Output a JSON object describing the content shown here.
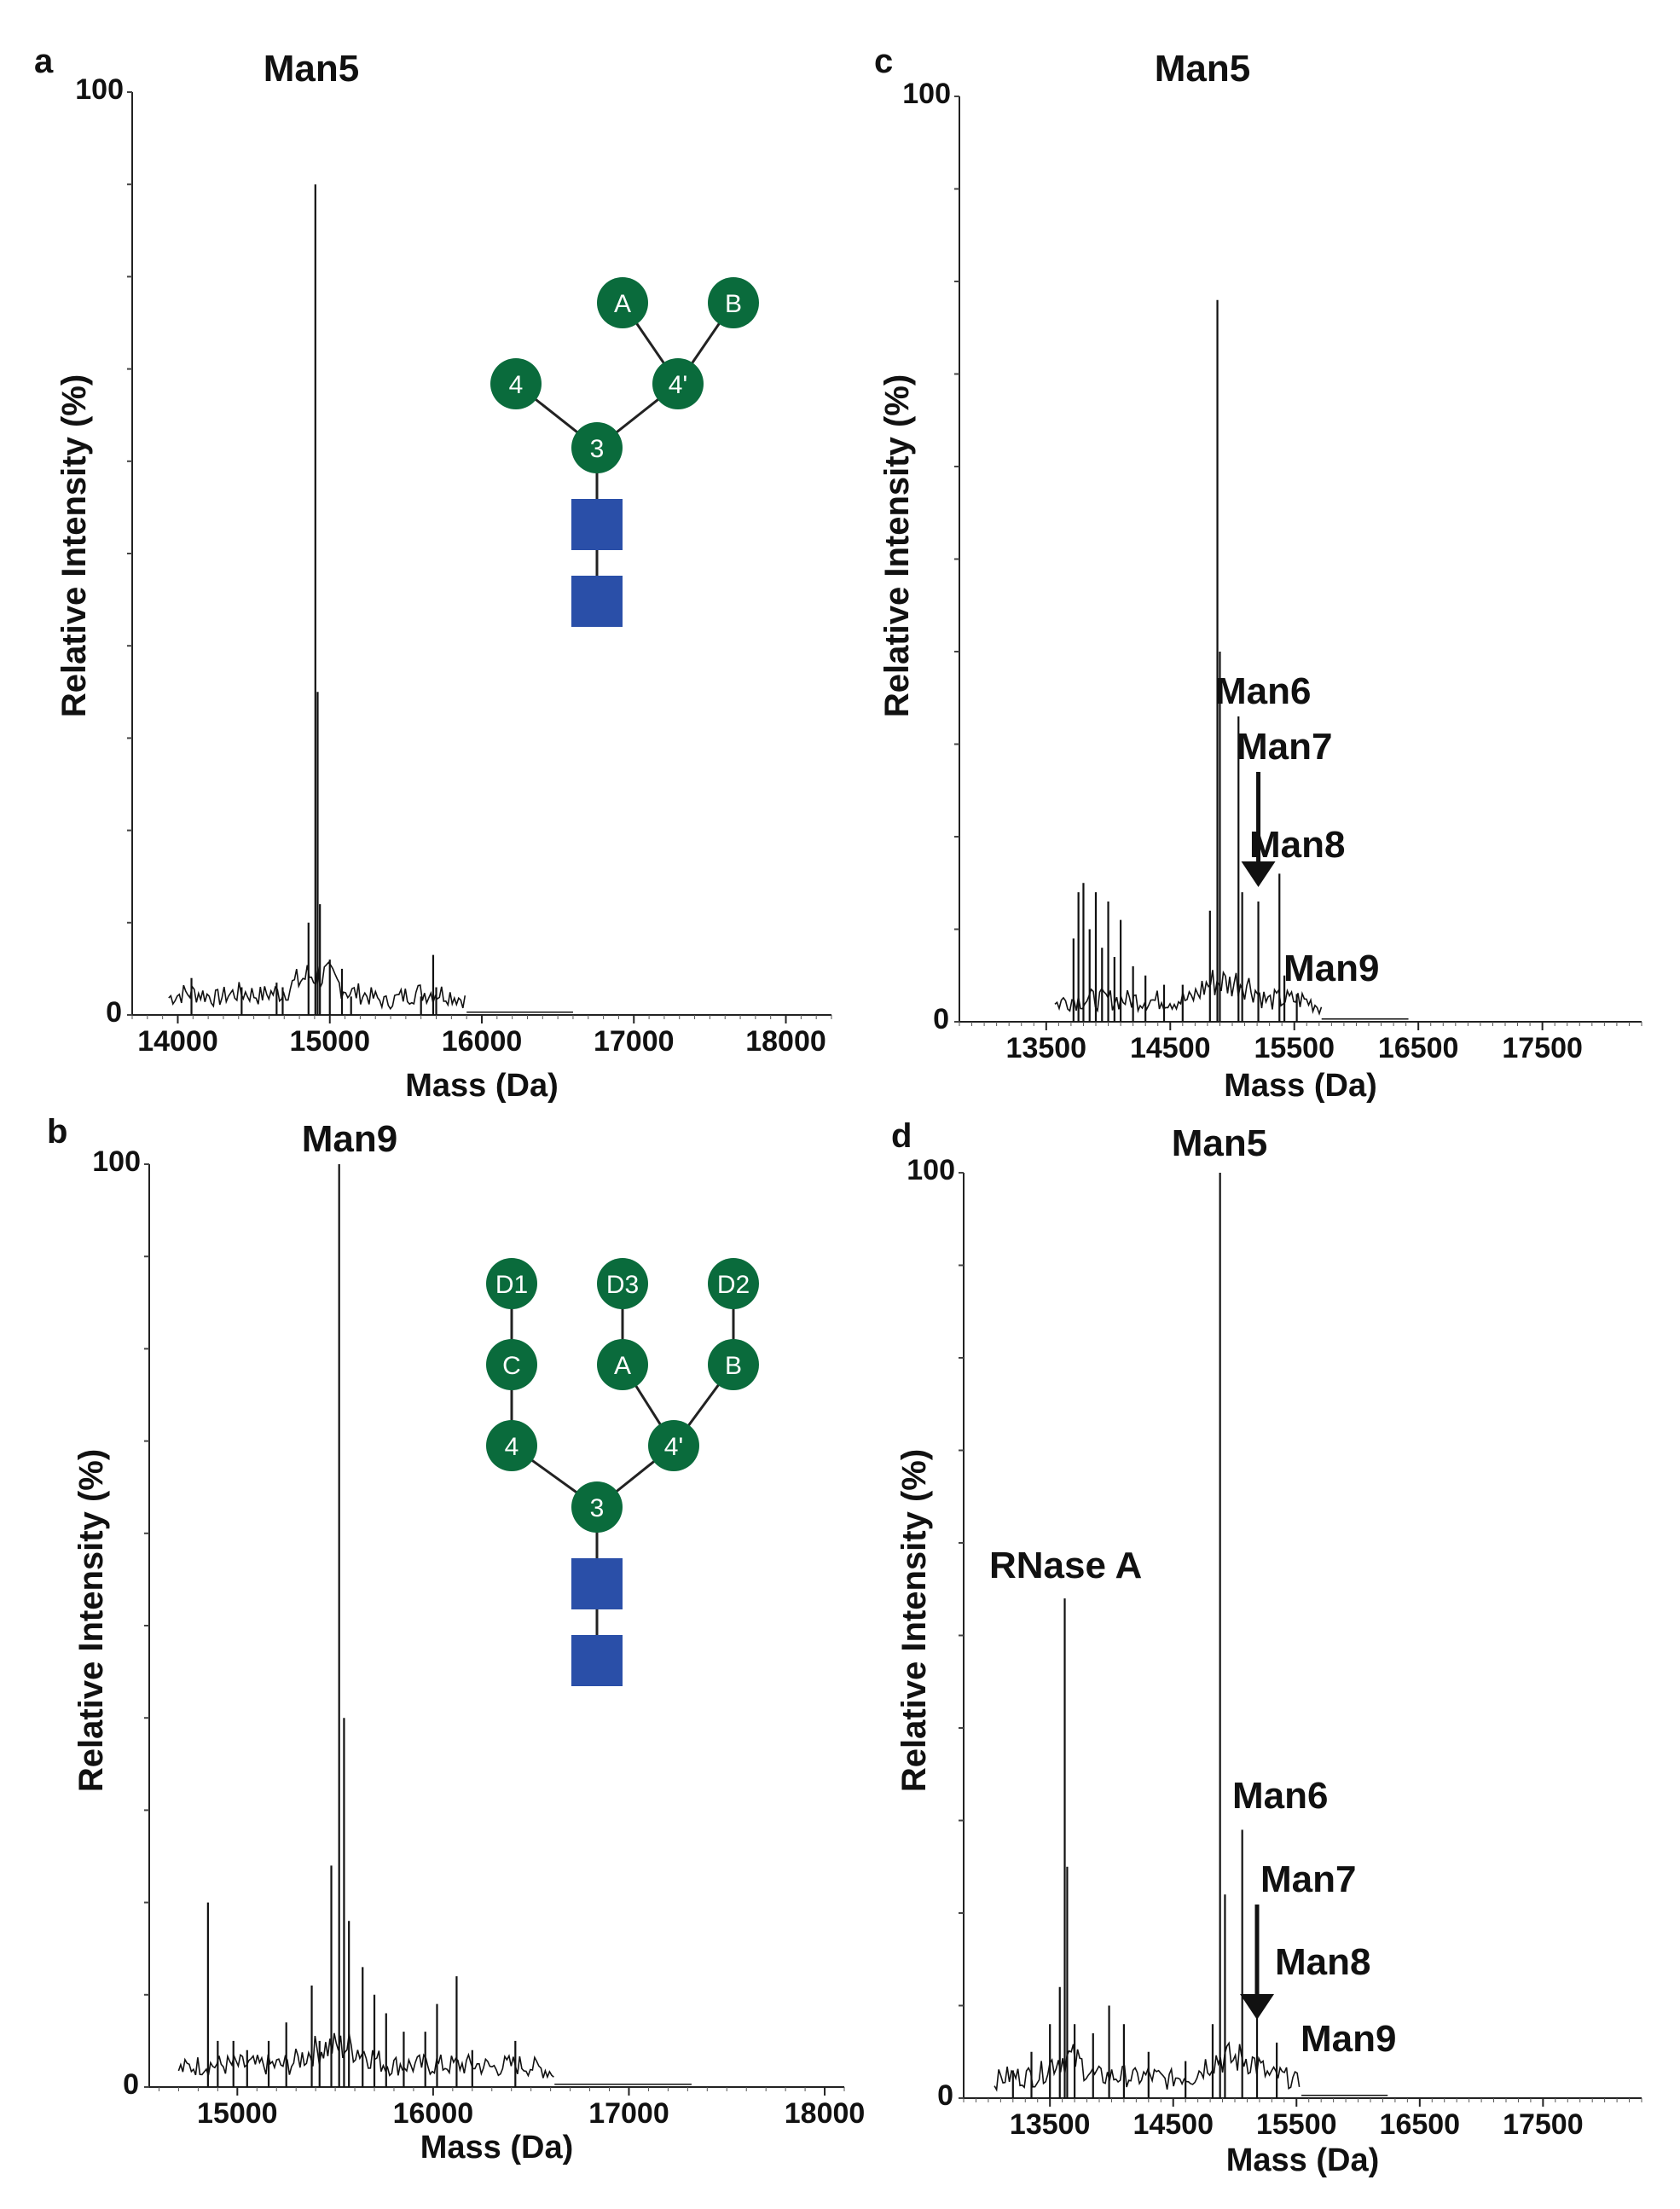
{
  "chart_data": [
    {
      "panel": "a",
      "type": "line",
      "title": "Man5",
      "xlabel": "Mass (Da)",
      "ylabel": "Relative Intensity (%)",
      "xlim": [
        13700,
        18300
      ],
      "ylim": [
        0,
        100
      ],
      "x_ticks": [
        14000,
        15000,
        16000,
        17000,
        18000
      ],
      "y_tick_labels": [
        "0",
        "100"
      ],
      "peaks": [
        {
          "x": 14090,
          "y": 4
        },
        {
          "x": 14420,
          "y": 3
        },
        {
          "x": 14650,
          "y": 3.5
        },
        {
          "x": 14690,
          "y": 3
        },
        {
          "x": 14860,
          "y": 10
        },
        {
          "x": 14905,
          "y": 90
        },
        {
          "x": 14920,
          "y": 35
        },
        {
          "x": 14935,
          "y": 12
        },
        {
          "x": 15000,
          "y": 6
        },
        {
          "x": 15080,
          "y": 5
        },
        {
          "x": 15140,
          "y": 2
        },
        {
          "x": 15600,
          "y": 2
        },
        {
          "x": 15680,
          "y": 6.5
        },
        {
          "x": 15700,
          "y": 3
        }
      ],
      "annotations": [],
      "inset_glycan": {
        "nodes": [
          "A",
          "B",
          "4",
          "4'",
          "3"
        ],
        "squares": 2
      }
    },
    {
      "panel": "b",
      "type": "line",
      "title": "Man9",
      "xlabel": "Mass (Da)",
      "ylabel": "Relative Intensity (%)",
      "xlim": [
        14550,
        18100
      ],
      "ylim": [
        0,
        100
      ],
      "x_ticks": [
        15000,
        16000,
        17000,
        18000
      ],
      "y_tick_labels": [
        "0",
        "100"
      ],
      "peaks": [
        {
          "x": 14850,
          "y": 20
        },
        {
          "x": 14900,
          "y": 5
        },
        {
          "x": 14980,
          "y": 5
        },
        {
          "x": 15050,
          "y": 4
        },
        {
          "x": 15160,
          "y": 5
        },
        {
          "x": 15250,
          "y": 7
        },
        {
          "x": 15380,
          "y": 11
        },
        {
          "x": 15420,
          "y": 5
        },
        {
          "x": 15480,
          "y": 24
        },
        {
          "x": 15520,
          "y": 100
        },
        {
          "x": 15545,
          "y": 40
        },
        {
          "x": 15570,
          "y": 18
        },
        {
          "x": 15640,
          "y": 13
        },
        {
          "x": 15700,
          "y": 10
        },
        {
          "x": 15760,
          "y": 8
        },
        {
          "x": 15850,
          "y": 6
        },
        {
          "x": 15960,
          "y": 6
        },
        {
          "x": 16020,
          "y": 9
        },
        {
          "x": 16120,
          "y": 12
        },
        {
          "x": 16200,
          "y": 4
        },
        {
          "x": 16420,
          "y": 5
        }
      ],
      "annotations": [],
      "inset_glycan": {
        "nodes": [
          "D1",
          "D3",
          "D2",
          "C",
          "A",
          "B",
          "4",
          "4'",
          "3"
        ],
        "squares": 2
      }
    },
    {
      "panel": "c",
      "type": "line",
      "title": "Man5",
      "xlabel": "Mass (Da)",
      "ylabel": "Relative Intensity (%)",
      "xlim": [
        12800,
        18300
      ],
      "ylim": [
        0,
        100
      ],
      "x_ticks": [
        13500,
        14500,
        15500,
        16500,
        17500
      ],
      "y_tick_labels": [
        "0",
        "100"
      ],
      "peaks": [
        {
          "x": 13720,
          "y": 9
        },
        {
          "x": 13760,
          "y": 14
        },
        {
          "x": 13800,
          "y": 15
        },
        {
          "x": 13850,
          "y": 10
        },
        {
          "x": 13900,
          "y": 14
        },
        {
          "x": 13950,
          "y": 8
        },
        {
          "x": 14000,
          "y": 13
        },
        {
          "x": 14050,
          "y": 7
        },
        {
          "x": 14100,
          "y": 11
        },
        {
          "x": 14200,
          "y": 6
        },
        {
          "x": 14300,
          "y": 5
        },
        {
          "x": 14450,
          "y": 4
        },
        {
          "x": 14600,
          "y": 4
        },
        {
          "x": 14820,
          "y": 12
        },
        {
          "x": 14880,
          "y": 78
        },
        {
          "x": 14900,
          "y": 40
        },
        {
          "x": 15050,
          "y": 33
        },
        {
          "x": 15080,
          "y": 14
        },
        {
          "x": 15210,
          "y": 13
        },
        {
          "x": 15380,
          "y": 16
        },
        {
          "x": 15420,
          "y": 5
        },
        {
          "x": 15520,
          "y": 3
        }
      ],
      "annotations": [
        {
          "label": "Man6",
          "x": 15050
        },
        {
          "label": "Man7",
          "x": 15210,
          "arrow": true
        },
        {
          "label": "Man8",
          "x": 15380
        },
        {
          "label": "Man9",
          "x": 15540
        }
      ]
    },
    {
      "panel": "d",
      "type": "line",
      "title": "Man5",
      "xlabel": "Mass (Da)",
      "ylabel": "Relative Intensity (%)",
      "xlim": [
        12800,
        18300
      ],
      "ylim": [
        0,
        100
      ],
      "x_ticks": [
        13500,
        14500,
        15500,
        16500,
        17500
      ],
      "y_tick_labels": [
        "0",
        "100"
      ],
      "peaks": [
        {
          "x": 13200,
          "y": 3
        },
        {
          "x": 13350,
          "y": 5
        },
        {
          "x": 13500,
          "y": 8
        },
        {
          "x": 13580,
          "y": 12
        },
        {
          "x": 13620,
          "y": 54
        },
        {
          "x": 13640,
          "y": 25
        },
        {
          "x": 13700,
          "y": 8
        },
        {
          "x": 13850,
          "y": 7
        },
        {
          "x": 13980,
          "y": 10
        },
        {
          "x": 14100,
          "y": 8
        },
        {
          "x": 14300,
          "y": 5
        },
        {
          "x": 14600,
          "y": 4
        },
        {
          "x": 14820,
          "y": 8
        },
        {
          "x": 14880,
          "y": 100
        },
        {
          "x": 14920,
          "y": 22
        },
        {
          "x": 15060,
          "y": 29
        },
        {
          "x": 15180,
          "y": 10
        },
        {
          "x": 15340,
          "y": 6
        }
      ],
      "annotations": [
        {
          "label": "RNase A",
          "x": 13620
        },
        {
          "label": "Man6",
          "x": 15060
        },
        {
          "label": "Man7",
          "x": 15180,
          "arrow": true
        },
        {
          "label": "Man8",
          "x": 15260
        },
        {
          "label": "Man9",
          "x": 15340
        }
      ]
    }
  ],
  "colors": {
    "glycan_mannose": "#0a6b3c",
    "glycan_glcnac": "#2a4fa8",
    "trace": "#111111"
  }
}
